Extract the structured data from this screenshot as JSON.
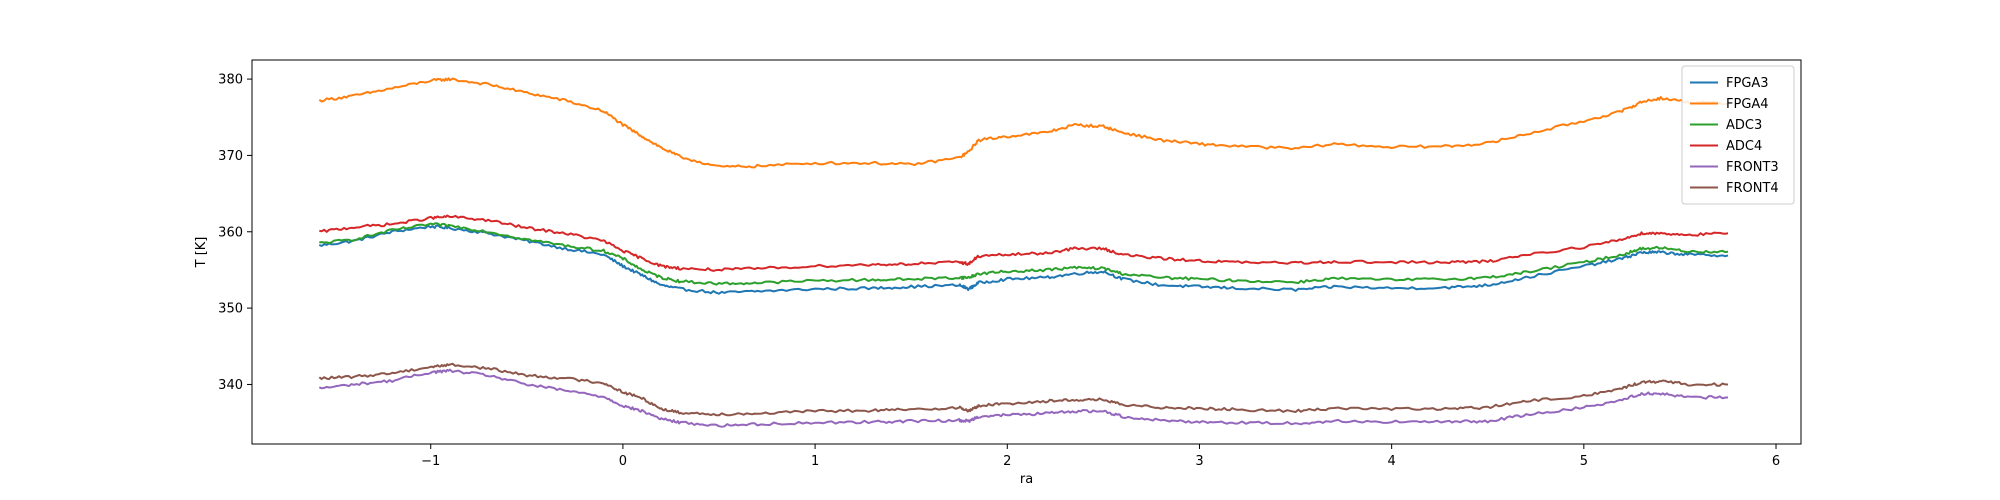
{
  "chart_data": {
    "type": "line",
    "title": "",
    "xlabel": "ra",
    "ylabel": "T [K]",
    "xlim": [
      -1.93,
      6.13
    ],
    "ylim": [
      332.2,
      382.5
    ],
    "xticks": [
      -1,
      0,
      1,
      2,
      3,
      4,
      5,
      6
    ],
    "yticks": [
      340,
      350,
      360,
      370,
      380
    ],
    "xtick_labels": [
      "−1",
      "0",
      "1",
      "2",
      "3",
      "4",
      "5",
      "6"
    ],
    "ytick_labels": [
      "340",
      "350",
      "360",
      "370",
      "380"
    ],
    "grid": false,
    "legend_position": "top-right",
    "x": [
      -1.58,
      -1.4,
      -1.2,
      -1.0,
      -0.9,
      -0.7,
      -0.5,
      -0.3,
      -0.1,
      0.0,
      0.1,
      0.2,
      0.3,
      0.5,
      0.7,
      1.0,
      1.3,
      1.5,
      1.75,
      1.8,
      1.85,
      2.0,
      2.2,
      2.35,
      2.5,
      2.6,
      2.8,
      3.0,
      3.2,
      3.5,
      3.7,
      4.0,
      4.3,
      4.5,
      4.7,
      5.0,
      5.2,
      5.3,
      5.4,
      5.55,
      5.75
    ],
    "series": [
      {
        "name": "FPGA3",
        "color": "#1f77b4",
        "values": [
          358.2,
          358.8,
          360.0,
          360.7,
          360.5,
          359.8,
          358.8,
          357.8,
          357.0,
          355.5,
          354.3,
          353.0,
          352.5,
          352.0,
          352.2,
          352.5,
          352.6,
          352.8,
          353.0,
          352.5,
          353.3,
          353.8,
          354.0,
          354.5,
          354.8,
          353.8,
          353.0,
          352.8,
          352.6,
          352.4,
          352.8,
          352.6,
          352.7,
          353.0,
          354.0,
          355.5,
          356.5,
          357.3,
          357.3,
          357.0,
          356.9
        ]
      },
      {
        "name": "FPGA4",
        "color": "#ff7f0e",
        "values": [
          377.2,
          377.8,
          378.8,
          379.8,
          380.0,
          379.3,
          378.2,
          377.2,
          375.8,
          374.0,
          372.5,
          371.0,
          369.8,
          368.5,
          368.6,
          369.0,
          369.0,
          368.8,
          369.7,
          370.5,
          372.0,
          372.5,
          373.0,
          374.0,
          373.8,
          373.0,
          372.0,
          371.5,
          371.2,
          370.9,
          371.5,
          371.1,
          371.2,
          371.6,
          372.8,
          374.5,
          375.8,
          377.0,
          377.5,
          377.0,
          376.8
        ]
      },
      {
        "name": "ADC3",
        "color": "#2ca02c",
        "values": [
          358.5,
          359.0,
          360.2,
          361.0,
          360.8,
          360.0,
          359.0,
          358.2,
          357.5,
          356.5,
          355.0,
          354.0,
          353.5,
          353.2,
          353.3,
          353.6,
          353.7,
          353.8,
          354.0,
          354.0,
          354.5,
          354.8,
          355.0,
          355.3,
          355.2,
          354.5,
          354.0,
          353.8,
          353.6,
          353.4,
          353.9,
          353.7,
          353.8,
          354.0,
          354.7,
          356.0,
          357.0,
          357.8,
          357.9,
          357.4,
          357.4
        ]
      },
      {
        "name": "ADC4",
        "color": "#d62728",
        "values": [
          360.0,
          360.6,
          361.0,
          361.8,
          362.0,
          361.5,
          360.5,
          359.8,
          358.8,
          357.5,
          356.5,
          355.5,
          355.2,
          355.0,
          355.2,
          355.5,
          355.7,
          355.8,
          356.0,
          355.8,
          356.8,
          357.0,
          357.2,
          357.8,
          357.8,
          357.0,
          356.5,
          356.2,
          356.0,
          355.9,
          356.1,
          356.0,
          356.0,
          356.1,
          357.0,
          358.0,
          359.0,
          359.8,
          359.8,
          359.6,
          359.8
        ]
      },
      {
        "name": "FRONT3",
        "color": "#9467bd",
        "values": [
          339.5,
          340.0,
          340.5,
          341.6,
          341.8,
          341.2,
          340.0,
          339.2,
          338.4,
          337.2,
          336.5,
          335.5,
          335.0,
          334.6,
          334.8,
          335.0,
          335.1,
          335.2,
          335.3,
          335.2,
          335.8,
          336.0,
          336.2,
          336.5,
          336.5,
          335.8,
          335.3,
          335.1,
          335.0,
          334.9,
          335.2,
          335.1,
          335.1,
          335.2,
          336.0,
          337.0,
          338.0,
          338.8,
          338.8,
          338.3,
          338.3
        ]
      },
      {
        "name": "FRONT4",
        "color": "#8c564b",
        "values": [
          340.8,
          341.0,
          341.5,
          342.3,
          342.6,
          342.1,
          341.2,
          340.8,
          340.2,
          339.0,
          338.2,
          336.8,
          336.3,
          336.1,
          336.2,
          336.5,
          336.6,
          336.7,
          337.0,
          336.5,
          337.2,
          337.5,
          337.8,
          338.0,
          338.0,
          337.3,
          337.0,
          336.9,
          336.7,
          336.5,
          336.9,
          336.8,
          336.8,
          337.0,
          337.8,
          338.5,
          339.5,
          340.3,
          340.4,
          340.0,
          340.0
        ]
      }
    ]
  }
}
